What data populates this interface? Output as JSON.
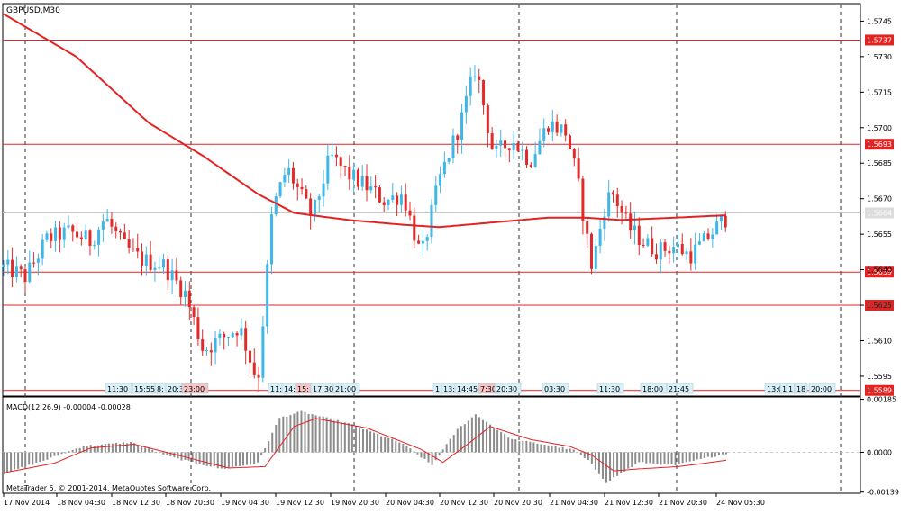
{
  "symbol_label": "GBPUSD,M30",
  "macd_label": "MACD(12,26,9) -0.00004 -0.00028",
  "copyright": "MetaTrader 5, © 2001-2014, MetaQuotes Software Corp.",
  "colors": {
    "bull": "#3fb6e8",
    "bear": "#e22a2a",
    "ma": "#e32222",
    "hline": "#e32222",
    "macd_hist": "#8c8c8c",
    "macd_signal": "#e32222",
    "current_price_line": "#c8c8c8",
    "separator_line": "#333333"
  },
  "chart_data": [
    {
      "type": "candlestick",
      "title": "GBPUSD,M30",
      "ylim": [
        1.5587,
        1.5752
      ],
      "y_ticks": [
        "1.5745",
        "1.5730",
        "1.5715",
        "1.5700",
        "1.5685",
        "1.5670",
        "1.5655",
        "1.5640",
        "1.5625",
        "1.5610",
        "1.5595"
      ],
      "x_ticks": [
        "17 Nov 2014",
        "18 Nov 04:30",
        "18 Nov 12:30",
        "18 Nov 20:30",
        "19 Nov 04:30",
        "19 Nov 12:30",
        "19 Nov 20:30",
        "20 Nov 04:30",
        "20 Nov 12:30",
        "20 Nov 20:30",
        "21 Nov 04:30",
        "21 Nov 12:30",
        "21 Nov 20:30",
        "24 Nov 05:30"
      ],
      "horizontal_levels": [
        "1.5737",
        "1.5693",
        "1.5639",
        "1.5625",
        "1.5589"
      ],
      "current_price": "1.5664",
      "candle_count": 168,
      "anchors": [
        [
          0,
          1.5641
        ],
        [
          6,
          1.5637
        ],
        [
          12,
          1.5653
        ],
        [
          18,
          1.5656
        ],
        [
          24,
          1.5652
        ],
        [
          28,
          1.5662
        ],
        [
          33,
          1.565
        ],
        [
          38,
          1.5644
        ],
        [
          44,
          1.5642
        ],
        [
          50,
          1.563
        ],
        [
          55,
          1.5606
        ],
        [
          60,
          1.5611
        ],
        [
          65,
          1.5616
        ],
        [
          70,
          1.5592
        ],
        [
          74,
          1.5665
        ],
        [
          78,
          1.5683
        ],
        [
          85,
          1.5662
        ],
        [
          90,
          1.5688
        ],
        [
          95,
          1.568
        ],
        [
          100,
          1.5675
        ],
        [
          105,
          1.5669
        ],
        [
          110,
          1.5672
        ],
        [
          115,
          1.5645
        ],
        [
          120,
          1.5678
        ],
        [
          126,
          1.5703
        ],
        [
          130,
          1.5726
        ],
        [
          135,
          1.5688
        ],
        [
          140,
          1.5695
        ],
        [
          145,
          1.5686
        ],
        [
          150,
          1.5702
        ],
        [
          155,
          1.5698
        ],
        [
          158,
          1.5678
        ],
        [
          162,
          1.5641
        ],
        [
          166,
          1.567
        ],
        [
          168,
          1.5672
        ],
        [
          172,
          1.5658
        ],
        [
          176,
          1.5652
        ],
        [
          180,
          1.5648
        ],
        [
          185,
          1.565
        ],
        [
          189,
          1.5646
        ],
        [
          193,
          1.5652
        ],
        [
          197,
          1.5659
        ],
        [
          199,
          1.5662
        ]
      ],
      "moving_average": [
        [
          0,
          1.5748
        ],
        [
          20,
          1.573
        ],
        [
          40,
          1.5702
        ],
        [
          55,
          1.5688
        ],
        [
          70,
          1.5672
        ],
        [
          80,
          1.5664
        ],
        [
          95,
          1.5661
        ],
        [
          110,
          1.5659
        ],
        [
          120,
          1.5658
        ],
        [
          135,
          1.566
        ],
        [
          150,
          1.5662
        ],
        [
          160,
          1.5662
        ],
        [
          170,
          1.5661
        ],
        [
          185,
          1.5662
        ],
        [
          199,
          1.5663
        ]
      ],
      "session_labels": [
        {
          "text": "11:30",
          "highlight": false
        },
        {
          "text": "15:55",
          "highlight": false
        },
        {
          "text": "8:",
          "highlight": false
        },
        {
          "text": "20:3",
          "highlight": false
        },
        {
          "text": "23:00",
          "highlight": true
        },
        {
          "text": "11:3",
          "highlight": false
        },
        {
          "text": "14:",
          "highlight": false
        },
        {
          "text": "15:",
          "highlight": true
        },
        {
          "text": "17:30",
          "highlight": false
        },
        {
          "text": "21:00",
          "highlight": false
        },
        {
          "text": "11:",
          "highlight": false
        },
        {
          "text": "13:",
          "highlight": false
        },
        {
          "text": "14:45",
          "highlight": false
        },
        {
          "text": "7:30",
          "highlight": true
        },
        {
          "text": "20:30",
          "highlight": false
        },
        {
          "text": "03:30",
          "highlight": false
        },
        {
          "text": "11:30",
          "highlight": false
        },
        {
          "text": "18:00",
          "highlight": false
        },
        {
          "text": "21:45",
          "highlight": false
        },
        {
          "text": "13:0",
          "highlight": false
        },
        {
          "text": "1",
          "highlight": false
        },
        {
          "text": "1",
          "highlight": false
        },
        {
          "text": "18",
          "highlight": false
        },
        {
          "text": "20:00",
          "highlight": false
        }
      ]
    },
    {
      "type": "bar",
      "title": "MACD(12,26,9)",
      "ylim": [
        -0.0014,
        0.0019
      ],
      "y_ticks": [
        "0.00185",
        "0.0000",
        "-0.00139"
      ],
      "hist_anchors": [
        [
          0,
          -0.00075
        ],
        [
          12,
          -0.00025
        ],
        [
          22,
          0.00022
        ],
        [
          35,
          0.00035
        ],
        [
          47,
          -0.0002
        ],
        [
          60,
          -0.00058
        ],
        [
          70,
          -0.00038
        ],
        [
          76,
          0.0012
        ],
        [
          82,
          0.00142
        ],
        [
          95,
          0.001
        ],
        [
          110,
          0.0003
        ],
        [
          118,
          -0.00045
        ],
        [
          125,
          0.0008
        ],
        [
          130,
          0.00132
        ],
        [
          140,
          0.00045
        ],
        [
          150,
          0.00025
        ],
        [
          157,
          8e-05
        ],
        [
          161,
          -0.0003
        ],
        [
          166,
          -0.00105
        ],
        [
          175,
          -0.00035
        ],
        [
          185,
          -0.00045
        ],
        [
          199,
          -4e-05
        ]
      ],
      "signal_anchors": [
        [
          0,
          -0.00072
        ],
        [
          14,
          -0.00038
        ],
        [
          24,
          0.00015
        ],
        [
          36,
          0.00028
        ],
        [
          48,
          -0.0001
        ],
        [
          62,
          -0.00055
        ],
        [
          72,
          -0.0005
        ],
        [
          80,
          0.0009
        ],
        [
          86,
          0.00118
        ],
        [
          100,
          0.00085
        ],
        [
          115,
          0.0001
        ],
        [
          121,
          -0.00035
        ],
        [
          128,
          0.0003
        ],
        [
          134,
          0.0009
        ],
        [
          145,
          0.00045
        ],
        [
          156,
          0.0002
        ],
        [
          162,
          -0.0001
        ],
        [
          168,
          -0.00065
        ],
        [
          175,
          -0.00058
        ],
        [
          186,
          -0.0005
        ],
        [
          199,
          -0.00028
        ]
      ]
    }
  ]
}
